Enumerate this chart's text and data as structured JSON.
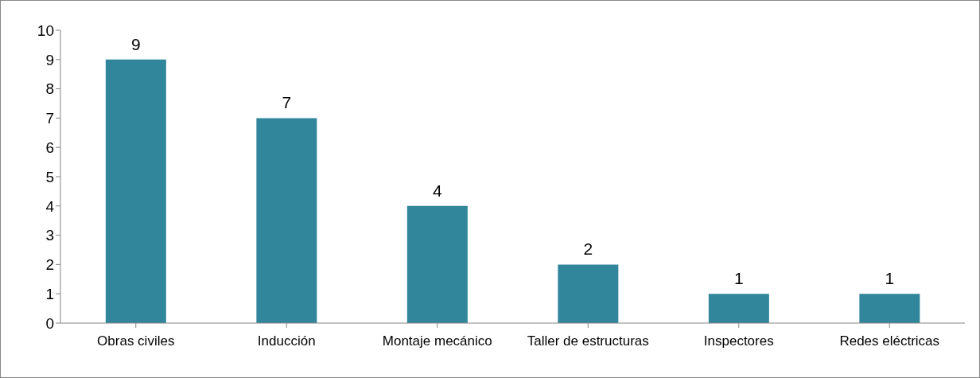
{
  "chart_data": {
    "type": "bar",
    "categories": [
      "Obras civiles",
      "Inducción",
      "Montaje mecánico",
      "Taller de estructuras",
      "Inspectores",
      "Redes eléctricas"
    ],
    "values": [
      9,
      7,
      4,
      2,
      1,
      1
    ],
    "color": "#31869b",
    "ylim": [
      0,
      10
    ],
    "yticks": [
      0,
      1,
      2,
      3,
      4,
      5,
      6,
      7,
      8,
      9,
      10
    ],
    "grid": false,
    "data_labels": true
  }
}
